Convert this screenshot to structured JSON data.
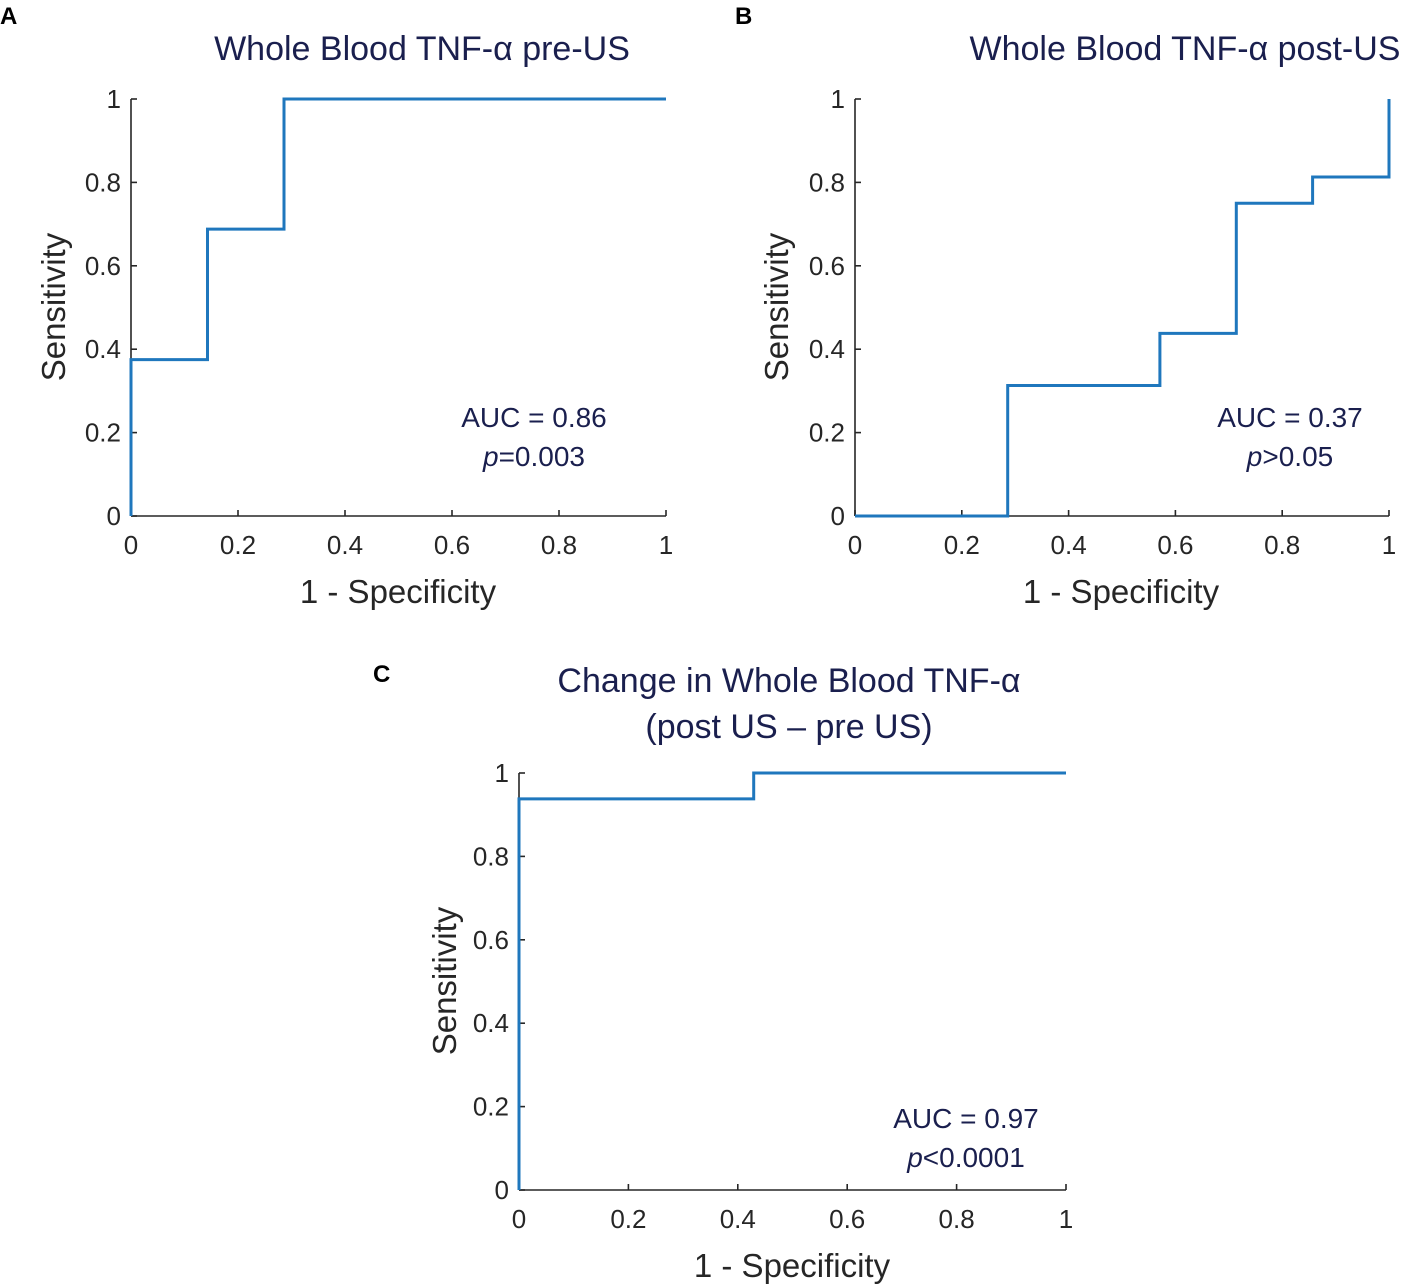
{
  "colors": {
    "curve": "#1f77bd",
    "title": "#1a1f4e",
    "axis": "#262626"
  },
  "chart_data": [
    {
      "panel": "A",
      "type": "line",
      "title": "Whole Blood TNF-α pre-US",
      "xlabel": "1 - Specificity",
      "ylabel": "Sensitivity",
      "xlim": [
        0,
        1
      ],
      "ylim": [
        0,
        1
      ],
      "xticks": [
        "0",
        "0.2",
        "0.4",
        "0.6",
        "0.8",
        "1"
      ],
      "yticks": [
        "0",
        "0.2",
        "0.4",
        "0.6",
        "0.8",
        "1"
      ],
      "roc": [
        [
          0,
          0
        ],
        [
          0,
          0.375
        ],
        [
          0.143,
          0.375
        ],
        [
          0.143,
          0.688
        ],
        [
          0.286,
          0.688
        ],
        [
          0.286,
          1
        ],
        [
          1,
          1
        ]
      ],
      "auc_text": "AUC = 0.86",
      "p_letter": "p",
      "p_text": "=0.003"
    },
    {
      "panel": "B",
      "type": "line",
      "title": "Whole Blood TNF-α post-US",
      "xlabel": "1 - Specificity",
      "ylabel": "Sensitivity",
      "xlim": [
        0,
        1
      ],
      "ylim": [
        0,
        1
      ],
      "xticks": [
        "0",
        "0.2",
        "0.4",
        "0.6",
        "0.8",
        "1"
      ],
      "yticks": [
        "0",
        "0.2",
        "0.4",
        "0.6",
        "0.8",
        "1"
      ],
      "roc": [
        [
          0,
          0
        ],
        [
          0.286,
          0
        ],
        [
          0.286,
          0.313
        ],
        [
          0.571,
          0.313
        ],
        [
          0.571,
          0.438
        ],
        [
          0.714,
          0.438
        ],
        [
          0.714,
          0.75
        ],
        [
          0.857,
          0.75
        ],
        [
          0.857,
          0.813
        ],
        [
          1,
          0.813
        ],
        [
          1,
          1
        ]
      ],
      "auc_text": "AUC = 0.37",
      "p_letter": "p",
      "p_text": ">0.05"
    },
    {
      "panel": "C",
      "type": "line",
      "title": "Change in Whole Blood TNF-α",
      "subtitle": "(post US – pre US)",
      "xlabel": "1 - Specificity",
      "ylabel": "Sensitivity",
      "xlim": [
        0,
        1
      ],
      "ylim": [
        0,
        1
      ],
      "xticks": [
        "0",
        "0.2",
        "0.4",
        "0.6",
        "0.8",
        "1"
      ],
      "yticks": [
        "0",
        "0.2",
        "0.4",
        "0.6",
        "0.8",
        "1"
      ],
      "roc": [
        [
          0,
          0
        ],
        [
          0,
          0.938
        ],
        [
          0.429,
          0.938
        ],
        [
          0.429,
          1
        ],
        [
          1,
          1
        ]
      ],
      "auc_text": "AUC = 0.97",
      "p_letter": "p",
      "p_text": "<0.0001"
    }
  ]
}
